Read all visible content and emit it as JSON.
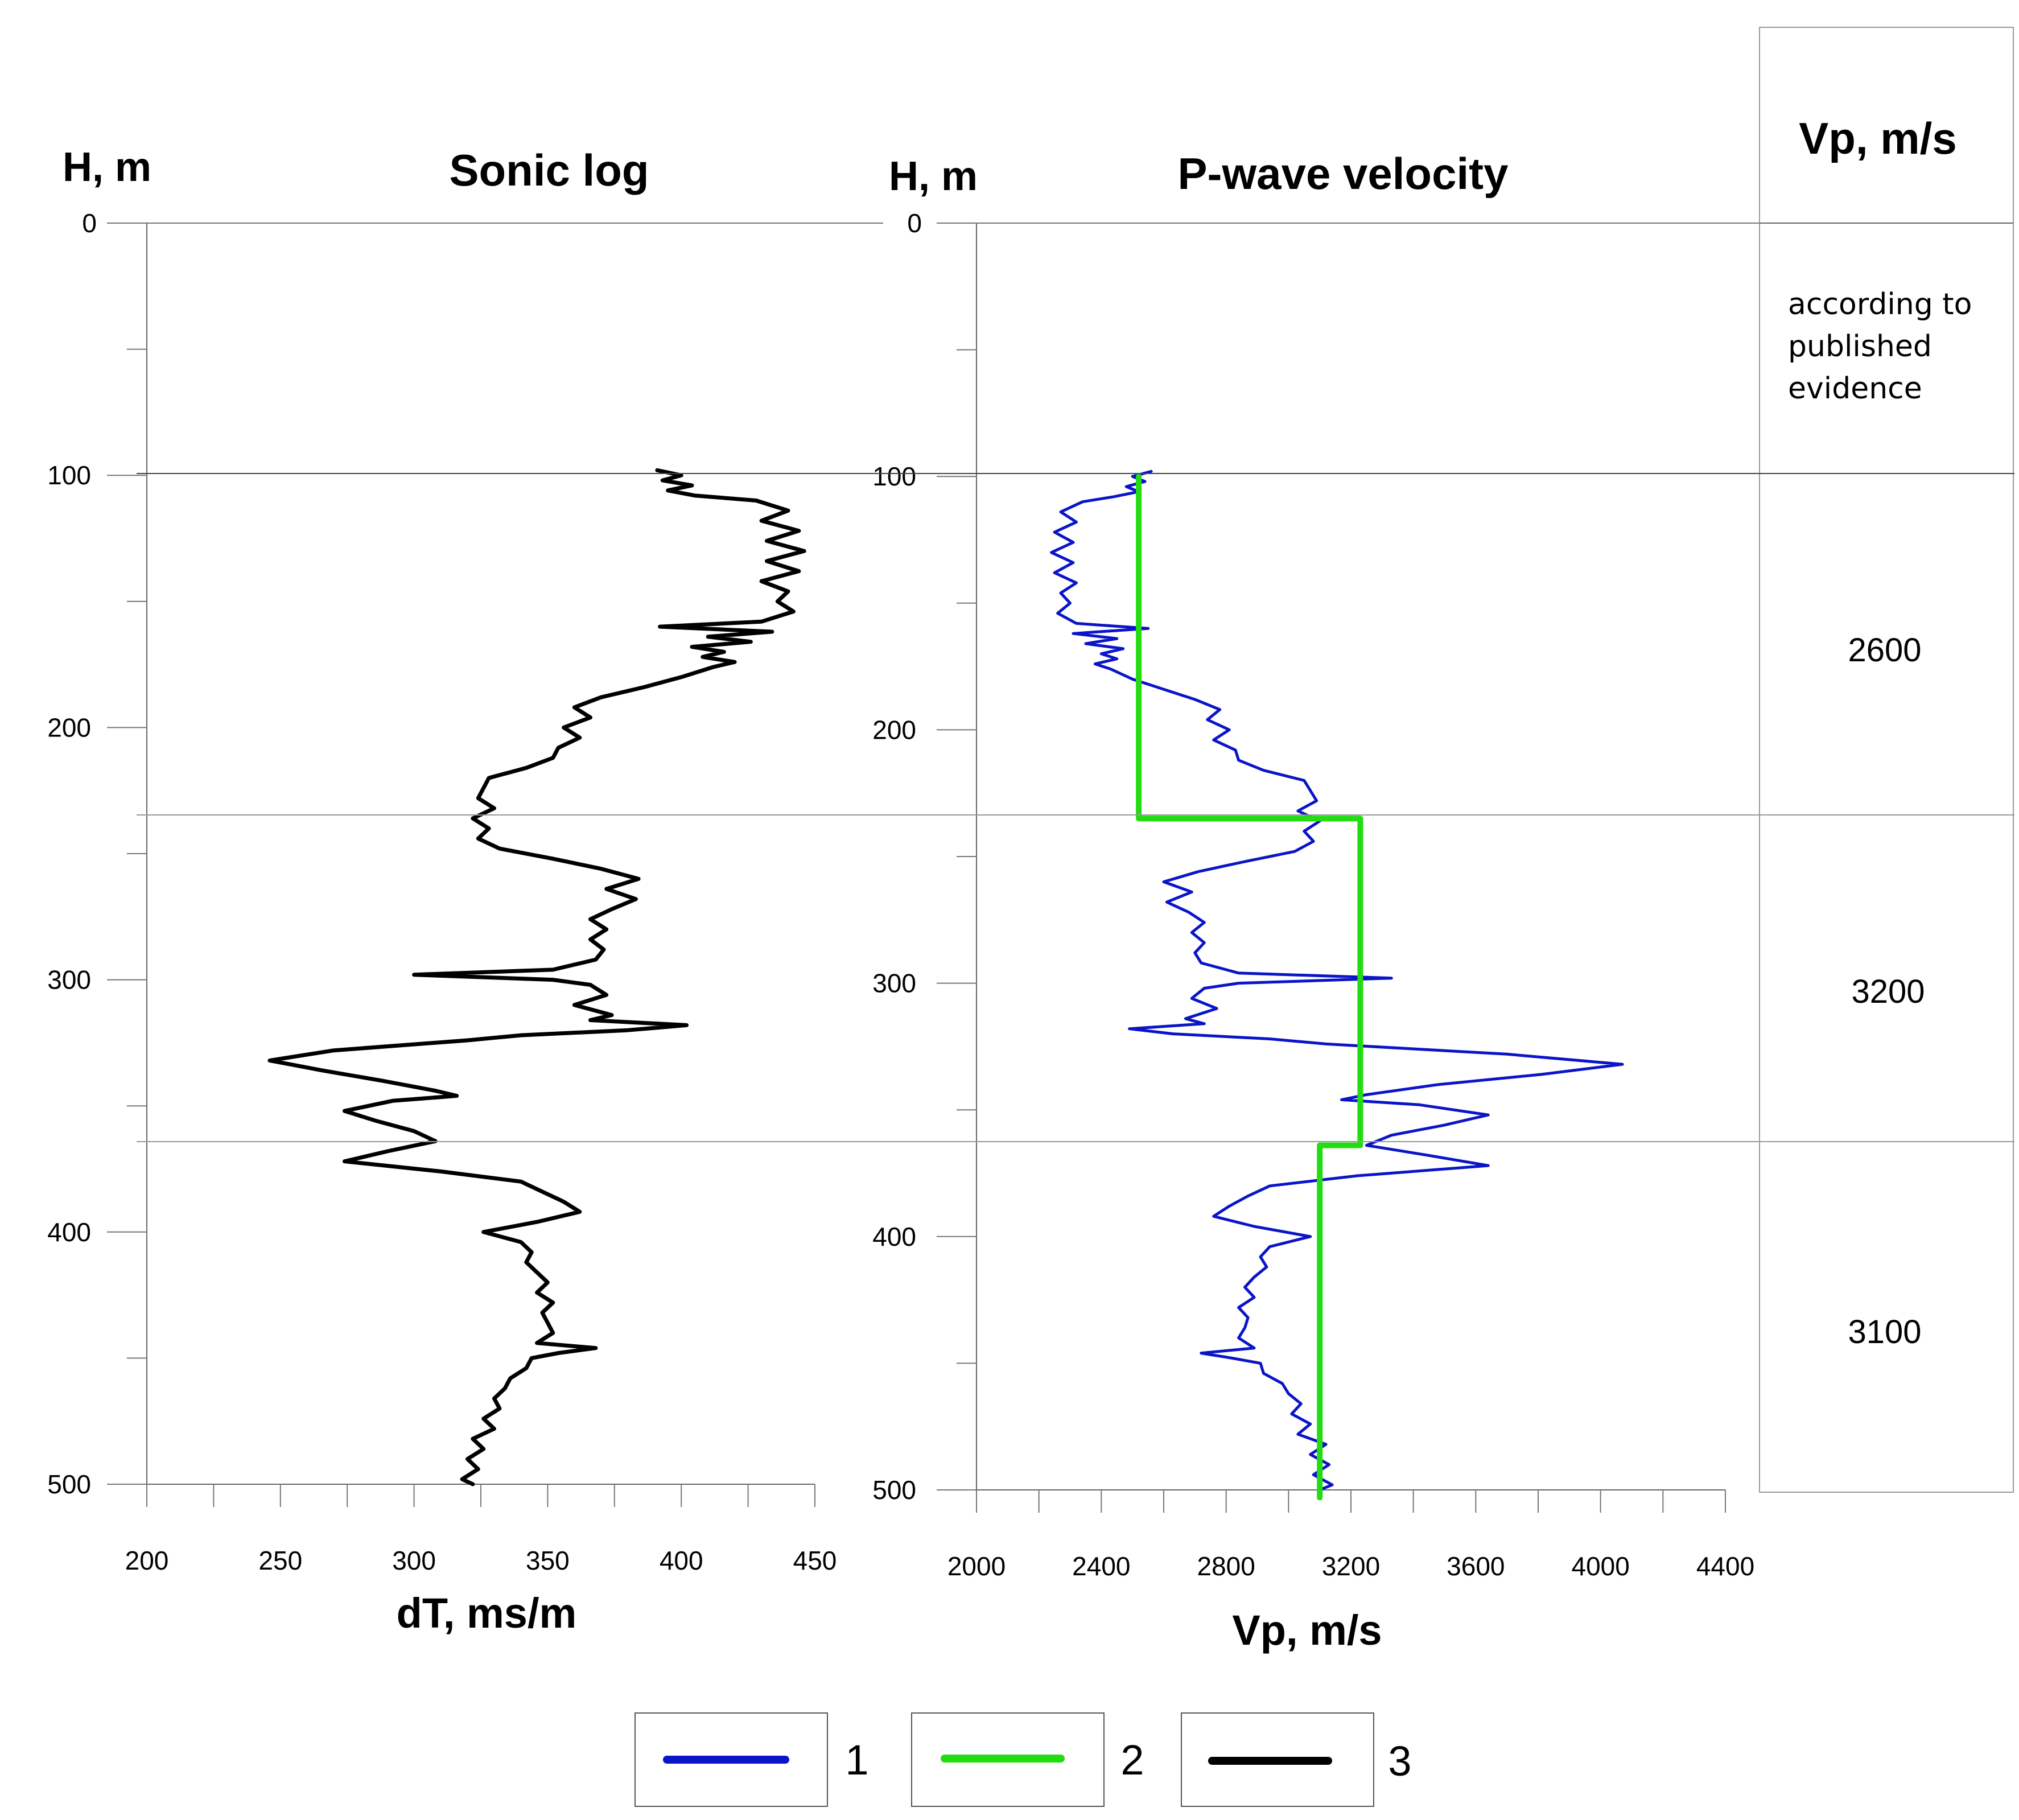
{
  "chart_data": [
    {
      "type": "line",
      "title": "Sonic log",
      "ylabel": "H, m",
      "xlabel": "dT, ms/m",
      "xlim": [
        200,
        450
      ],
      "ylim": [
        0,
        500
      ],
      "x_ticks": [
        "200",
        "250",
        "300",
        "350",
        "400",
        "450"
      ],
      "y_ticks": [
        "0",
        "100",
        "200",
        "300",
        "400",
        "500"
      ],
      "series": [
        {
          "name": "3",
          "color": "#000000",
          "depth": [
            98,
            100,
            102,
            104,
            106,
            108,
            110,
            114,
            118,
            122,
            126,
            130,
            134,
            138,
            142,
            146,
            150,
            154,
            158,
            160,
            162,
            164,
            166,
            168,
            170,
            172,
            174,
            176,
            180,
            184,
            188,
            192,
            196,
            200,
            204,
            208,
            212,
            216,
            220,
            224,
            228,
            232,
            236,
            240,
            244,
            248,
            252,
            256,
            260,
            264,
            268,
            272,
            276,
            280,
            284,
            288,
            292,
            296,
            298,
            300,
            302,
            306,
            310,
            314,
            316,
            318,
            320,
            322,
            324,
            328,
            332,
            336,
            340,
            344,
            346,
            348,
            352,
            356,
            360,
            364,
            368,
            372,
            376,
            380,
            384,
            388,
            392,
            396,
            400,
            404,
            408,
            412,
            416,
            420,
            424,
            428,
            432,
            436,
            440,
            444,
            446,
            448,
            450,
            454,
            458,
            462,
            466,
            470,
            474,
            478,
            482,
            486,
            490,
            494,
            498,
            500
          ],
          "values": [
            391,
            400,
            393,
            404,
            395,
            405,
            428,
            440,
            430,
            444,
            432,
            446,
            432,
            444,
            430,
            440,
            436,
            442,
            430,
            392,
            434,
            410,
            426,
            404,
            416,
            408,
            420,
            412,
            400,
            386,
            370,
            360,
            366,
            356,
            362,
            354,
            352,
            342,
            328,
            326,
            324,
            330,
            322,
            328,
            324,
            332,
            352,
            370,
            384,
            372,
            383,
            374,
            366,
            372,
            366,
            371,
            368,
            352,
            300,
            352,
            366,
            372,
            360,
            374,
            366,
            402,
            380,
            340,
            320,
            270,
            246,
            266,
            288,
            308,
            316,
            292,
            274,
            286,
            300,
            308,
            290,
            274,
            310,
            340,
            348,
            356,
            362,
            346,
            326,
            340,
            344,
            342,
            346,
            350,
            346,
            352,
            348,
            350,
            352,
            346,
            368,
            354,
            344,
            342,
            336,
            334,
            330,
            332,
            326,
            330,
            322,
            326,
            320,
            324,
            318,
            322
          ]
        }
      ]
    },
    {
      "type": "line",
      "title": "P-wave velocity",
      "ylabel": "H, m",
      "xlabel": "Vp, m/s",
      "xlim": [
        2000,
        4400
      ],
      "ylim": [
        0,
        500
      ],
      "x_ticks": [
        "2000",
        "2400",
        "2800",
        "3200",
        "3600",
        "4000",
        "4400"
      ],
      "y_ticks": [
        "0",
        "100",
        "200",
        "300",
        "400",
        "500"
      ],
      "series": [
        {
          "name": "1",
          "color": "#0a14c8",
          "depth": [
            98,
            100,
            102,
            104,
            106,
            108,
            110,
            114,
            118,
            122,
            126,
            130,
            134,
            138,
            142,
            146,
            150,
            154,
            158,
            160,
            162,
            164,
            166,
            168,
            170,
            172,
            174,
            176,
            180,
            184,
            188,
            192,
            196,
            200,
            204,
            208,
            212,
            216,
            220,
            224,
            228,
            232,
            236,
            240,
            244,
            248,
            252,
            256,
            260,
            264,
            268,
            272,
            276,
            280,
            284,
            288,
            292,
            296,
            298,
            300,
            302,
            306,
            310,
            314,
            316,
            318,
            320,
            322,
            324,
            328,
            332,
            336,
            340,
            344,
            346,
            348,
            352,
            356,
            360,
            364,
            368,
            372,
            376,
            380,
            384,
            388,
            392,
            396,
            400,
            404,
            408,
            412,
            416,
            420,
            424,
            428,
            432,
            436,
            440,
            444,
            446,
            448,
            450,
            454,
            458,
            462,
            466,
            470,
            474,
            478,
            482,
            486,
            490,
            494,
            498,
            500
          ],
          "values": [
            2560,
            2500,
            2540,
            2480,
            2520,
            2440,
            2340,
            2270,
            2320,
            2250,
            2310,
            2240,
            2310,
            2250,
            2320,
            2270,
            2300,
            2260,
            2320,
            2550,
            2310,
            2450,
            2350,
            2470,
            2400,
            2450,
            2380,
            2430,
            2500,
            2600,
            2700,
            2780,
            2740,
            2810,
            2760,
            2830,
            2840,
            2920,
            3050,
            3070,
            3090,
            3030,
            3100,
            3050,
            3080,
            3020,
            2860,
            2710,
            2600,
            2690,
            2610,
            2680,
            2730,
            2690,
            2730,
            2700,
            2720,
            2840,
            3330,
            2840,
            2730,
            2690,
            2770,
            2670,
            2730,
            2490,
            2630,
            2940,
            3120,
            3700,
            4070,
            3810,
            3480,
            3250,
            3170,
            3420,
            3640,
            3500,
            3330,
            3250,
            3450,
            3640,
            3220,
            2940,
            2870,
            2810,
            2760,
            2890,
            3070,
            2940,
            2910,
            2930,
            2890,
            2860,
            2890,
            2840,
            2870,
            2860,
            2840,
            2890,
            2720,
            2820,
            2910,
            2920,
            2980,
            3000,
            3040,
            3010,
            3070,
            3030,
            3120,
            3070,
            3130,
            3080,
            3140,
            3100
          ]
        },
        {
          "name": "2",
          "color": "#22dd11",
          "depth": [
            100,
            235,
            235,
            364,
            364,
            503
          ],
          "values": [
            2520,
            2520,
            3230,
            3230,
            3100,
            3100
          ]
        }
      ]
    }
  ],
  "velocity_table": {
    "header": "Vp, m/s",
    "note_lines": [
      "according to",
      "published",
      "evidence"
    ],
    "values": [
      "2600",
      "3200",
      "3100"
    ]
  },
  "legend": [
    {
      "label": "1",
      "color": "#0a14c8"
    },
    {
      "label": "2",
      "color": "#22dd11"
    },
    {
      "label": "3",
      "color": "#000000"
    }
  ]
}
